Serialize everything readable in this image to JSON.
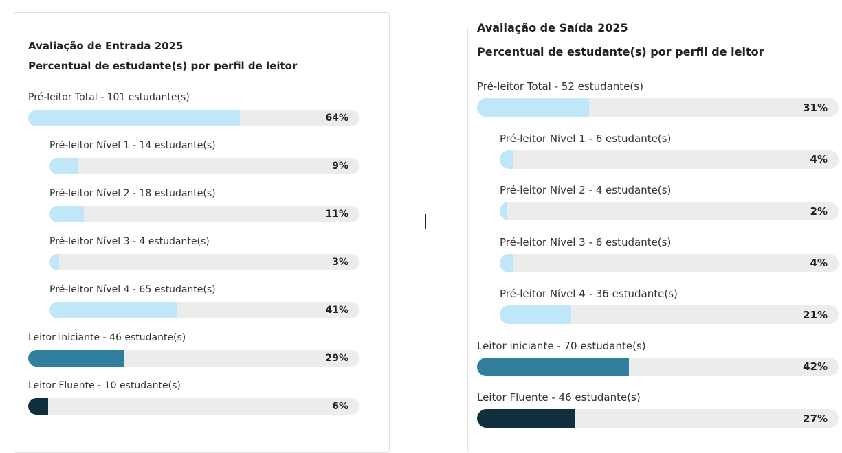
{
  "chart_data": [
    {
      "type": "bar",
      "orientation": "horizontal",
      "title": "Avaliação de Entrada 2025",
      "subtitle": "Percentual de estudante(s) por perfil de leitor",
      "categories": [
        "Pré-leitor Total - 101 estudante(s)",
        "Pré-leitor Nível 1 - 14 estudante(s)",
        "Pré-leitor Nível 2 - 18 estudante(s)",
        "Pré-leitor Nível 3 - 4 estudante(s)",
        "Pré-leitor Nível 4 - 65 estudante(s)",
        "Leitor iniciante - 46 estudante(s)",
        "Leitor Fluente - 10 estudante(s)"
      ],
      "levels": [
        0,
        1,
        1,
        1,
        1,
        0,
        0
      ],
      "values": [
        64,
        9,
        11,
        3,
        41,
        29,
        6
      ],
      "value_labels": [
        "64%",
        "9%",
        "11%",
        "3%",
        "41%",
        "29%",
        "6%"
      ],
      "colors": [
        "#bfe7f9",
        "#bfe7f9",
        "#bfe7f9",
        "#bfe7f9",
        "#bfe7f9",
        "#2f7f9d",
        "#0f2e3e"
      ],
      "xlim": [
        0,
        100
      ]
    },
    {
      "type": "bar",
      "orientation": "horizontal",
      "title": "Avaliação de Saída 2025",
      "subtitle": "Percentual de estudante(s) por perfil de leitor",
      "categories": [
        "Pré-leitor Total - 52 estudante(s)",
        "Pré-leitor Nível 1 - 6 estudante(s)",
        "Pré-leitor Nível 2 - 4 estudante(s)",
        "Pré-leitor Nível 3 - 6 estudante(s)",
        "Pré-leitor Nível 4 - 36 estudante(s)",
        "Leitor iniciante - 70 estudante(s)",
        "Leitor Fluente - 46 estudante(s)"
      ],
      "levels": [
        0,
        1,
        1,
        1,
        1,
        0,
        0
      ],
      "values": [
        31,
        4,
        2,
        4,
        21,
        42,
        27
      ],
      "value_labels": [
        "31%",
        "4%",
        "2%",
        "4%",
        "21%",
        "42%",
        "27%"
      ],
      "colors": [
        "#bfe7f9",
        "#bfe7f9",
        "#bfe7f9",
        "#bfe7f9",
        "#bfe7f9",
        "#2f7f9d",
        "#0f2e3e"
      ],
      "xlim": [
        0,
        100
      ]
    }
  ]
}
